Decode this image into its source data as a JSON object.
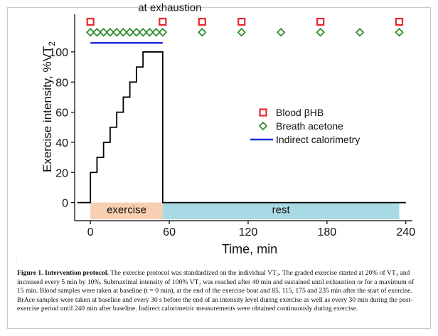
{
  "chart_data": {
    "type": "line",
    "xlabel": "Time, min",
    "ylabel": "Exercise intensity, %VT",
    "ylabel_subscript": "2",
    "xlim": [
      -12,
      245
    ],
    "ylim": [
      -12,
      125
    ],
    "xticks": [
      0,
      60,
      120,
      180,
      240
    ],
    "yticks": [
      0,
      20,
      40,
      60,
      80,
      100
    ],
    "series": [
      {
        "name": "Blood βHB",
        "marker": "square-open",
        "color": "#e8282b",
        "x": [
          0,
          55,
          85,
          115,
          175,
          235
        ],
        "y": [
          120,
          120,
          120,
          120,
          120,
          120
        ]
      },
      {
        "name": "Breath acetone",
        "marker": "diamond-open",
        "color": "#2e8b2e",
        "x": [
          0,
          5,
          10,
          15,
          20,
          25,
          30,
          35,
          40,
          45,
          50,
          55,
          85,
          115,
          145,
          175,
          205,
          235
        ],
        "y": [
          113,
          113,
          113,
          113,
          113,
          113,
          113,
          113,
          113,
          113,
          113,
          113,
          113,
          113,
          113,
          113,
          113,
          113
        ]
      },
      {
        "name": "Indirect calorimetry",
        "marker": "line",
        "color": "#1f2fd6",
        "x": [
          0,
          55
        ],
        "y": [
          106,
          106
        ]
      }
    ],
    "intensity_profile": {
      "x": [
        -10,
        0,
        0,
        5,
        5,
        10,
        10,
        15,
        15,
        20,
        20,
        25,
        25,
        30,
        30,
        35,
        35,
        40,
        40,
        55,
        55,
        240
      ],
      "y": [
        0,
        0,
        20,
        20,
        30,
        30,
        40,
        40,
        50,
        50,
        60,
        60,
        70,
        70,
        80,
        80,
        90,
        90,
        100,
        100,
        0,
        0
      ]
    },
    "phases": [
      {
        "label": "exercise",
        "x": [
          0,
          55
        ],
        "color": "#f8cfb0"
      },
      {
        "label": "rest",
        "x": [
          55,
          235
        ],
        "color": "#a9d9e4"
      }
    ],
    "annotations": [
      {
        "text": "at exhaustion",
        "x": 55,
        "y": 120
      }
    ],
    "legend_position": "center-right",
    "grid": false
  },
  "corner_mark": ":",
  "caption": {
    "label": "Figure 1. Intervention protocol.",
    "text": "The exercise protocol was standardized on the individual VT₂. The graded exercise started at 20% of VT₂ and increased every 5 min by 10%. Submaximal intensity of 100% VT₂ was reached after 40 min and sustained until exhaustion or for a maximum of 15 min. Blood samples were taken at baseline (t = 0 min), at the end of the exercise bout and 85, 115, 175 and 235 min after the start of exercise. BrAce samples were taken at baseline and every 30 s before the end of an intensity level during exercise as well as every 30 min during the post-exercise period until 240 min after baseline. Indirect calorimetric measurements were obtained continuously during exercise."
  }
}
